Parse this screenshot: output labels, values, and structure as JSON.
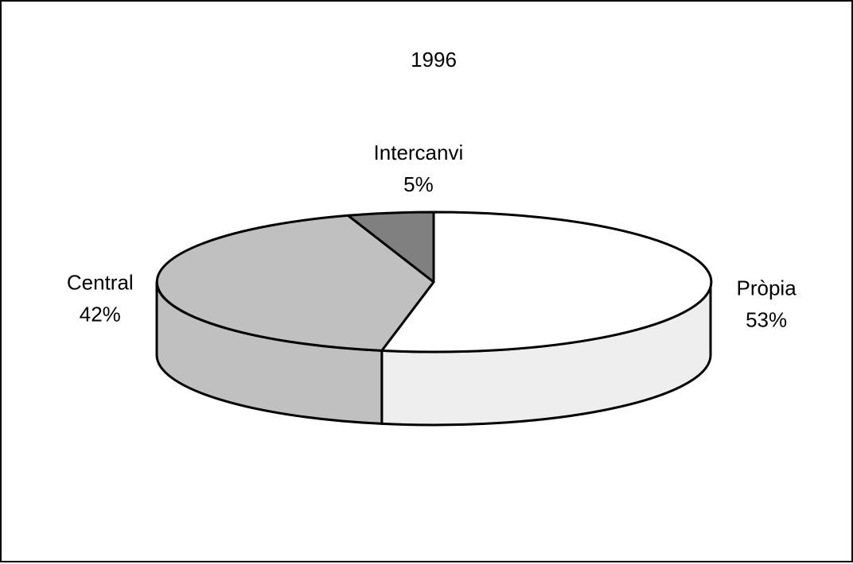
{
  "chart_data": {
    "type": "pie",
    "style": "3d",
    "title": "1996",
    "slices": [
      {
        "label": "Pròpia",
        "value": 53,
        "value_label": "53%",
        "top_color": "#ffffff",
        "side_color": "#eeeeee"
      },
      {
        "label": "Central",
        "value": 42,
        "value_label": "42%",
        "top_color": "#c0c0c0",
        "side_color": "#c0c0c0"
      },
      {
        "label": "Intercanvi",
        "value": 5,
        "value_label": "5%",
        "top_color": "#808080",
        "side_color": "#808080"
      }
    ],
    "legend": "none",
    "label_color": "#000000",
    "border_color": "#000000"
  }
}
